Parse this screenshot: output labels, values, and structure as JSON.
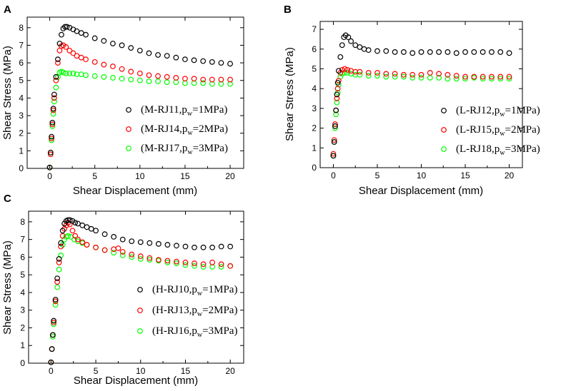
{
  "chart_data": [
    {
      "type": "scatter",
      "panel_label": "A",
      "xlabel": "Shear Displacement (mm)",
      "ylabel": "Shear Stress (MPa)",
      "xlim": [
        -2.5,
        21.5
      ],
      "ylim": [
        0,
        8.6
      ],
      "xticks": [
        0,
        5,
        10,
        15,
        20
      ],
      "yticks": [
        0,
        1,
        2,
        3,
        4,
        5,
        6,
        7,
        8
      ],
      "legend": {
        "placement": "right-middle"
      },
      "series": [
        {
          "name": "M-RJ11",
          "legend_prefix": "(M-RJ11,p",
          "legend_sub": "w",
          "legend_suffix": "=1MPa)",
          "color": "#000000",
          "x": [
            0,
            0.1,
            0.2,
            0.3,
            0.4,
            0.5,
            0.7,
            0.9,
            1.1,
            1.3,
            1.5,
            1.7,
            1.9,
            2.2,
            2.6,
            3,
            3.5,
            4,
            5,
            6,
            7,
            8,
            9,
            10,
            11,
            12,
            13,
            14,
            15,
            16,
            17,
            18,
            19,
            20
          ],
          "y": [
            0.05,
            0.9,
            1.8,
            2.6,
            3.4,
            4.2,
            5.2,
            6.2,
            7.1,
            7.6,
            7.95,
            8.05,
            8.05,
            8.0,
            7.9,
            7.8,
            7.7,
            7.6,
            7.4,
            7.25,
            7.1,
            7.0,
            6.85,
            6.7,
            6.55,
            6.45,
            6.4,
            6.3,
            6.2,
            6.15,
            6.1,
            6.05,
            6.0,
            5.95
          ]
        },
        {
          "name": "M-RJ14",
          "legend_prefix": "(M-RJ14,p",
          "legend_sub": "w",
          "legend_suffix": "=2MPa)",
          "color": "#ff0000",
          "x": [
            0,
            0.1,
            0.2,
            0.3,
            0.4,
            0.5,
            0.7,
            0.9,
            1.1,
            1.3,
            1.5,
            1.8,
            2.2,
            2.6,
            3,
            3.5,
            4,
            5,
            6,
            7,
            8,
            9,
            10,
            11,
            12,
            13,
            14,
            15,
            16,
            17,
            18,
            19,
            20
          ],
          "y": [
            0.05,
            0.8,
            1.7,
            2.5,
            3.3,
            4.0,
            5.0,
            6.0,
            6.7,
            6.95,
            7.0,
            6.9,
            6.7,
            6.55,
            6.4,
            6.3,
            6.2,
            6.05,
            5.9,
            5.8,
            5.65,
            5.5,
            5.4,
            5.3,
            5.25,
            5.2,
            5.15,
            5.1,
            5.1,
            5.05,
            5.05,
            5.05,
            5.05
          ]
        },
        {
          "name": "M-RJ17",
          "legend_prefix": "(M-RJ17,p",
          "legend_sub": "w",
          "legend_suffix": "=3MPa)",
          "color": "#00ff00",
          "x": [
            0,
            0.1,
            0.2,
            0.3,
            0.4,
            0.5,
            0.7,
            0.9,
            1.1,
            1.3,
            1.5,
            1.8,
            2.2,
            2.6,
            3,
            3.5,
            4,
            5,
            6,
            7,
            8,
            9,
            10,
            11,
            12,
            13,
            14,
            15,
            16,
            17,
            18,
            19,
            20
          ],
          "y": [
            0.05,
            0.8,
            1.6,
            2.4,
            3.1,
            3.8,
            4.6,
            5.2,
            5.45,
            5.5,
            5.45,
            5.4,
            5.4,
            5.4,
            5.35,
            5.35,
            5.3,
            5.25,
            5.2,
            5.15,
            5.1,
            5.05,
            5.0,
            4.95,
            4.95,
            4.9,
            4.9,
            4.85,
            4.85,
            4.85,
            4.8,
            4.8,
            4.8
          ]
        }
      ]
    },
    {
      "type": "scatter",
      "panel_label": "B",
      "xlabel": "Shear Displacement (mm)",
      "ylabel": "Shear Stress (MPa)",
      "xlim": [
        -1.5,
        21.5
      ],
      "ylim": [
        0,
        7.4
      ],
      "xticks": [
        0,
        5,
        10,
        15,
        20
      ],
      "yticks": [
        0,
        1,
        2,
        3,
        4,
        5,
        6,
        7
      ],
      "legend": {
        "placement": "right-middle"
      },
      "series": [
        {
          "name": "L-RJ12",
          "legend_prefix": "(L-RJ12,p",
          "legend_sub": "w",
          "legend_suffix": "=1MPa)",
          "color": "#000000",
          "x": [
            0,
            0.1,
            0.2,
            0.3,
            0.4,
            0.5,
            0.6,
            0.8,
            1.0,
            1.2,
            1.4,
            1.7,
            2,
            2.5,
            3,
            3.5,
            4,
            5,
            6,
            7,
            8,
            9,
            10,
            11,
            12,
            13,
            14,
            15,
            16,
            17,
            18,
            19,
            20
          ],
          "y": [
            0.6,
            1.3,
            2.1,
            2.9,
            3.7,
            4.3,
            4.9,
            5.6,
            6.2,
            6.6,
            6.7,
            6.6,
            6.4,
            6.2,
            6.1,
            6.0,
            5.95,
            5.9,
            5.9,
            5.85,
            5.85,
            5.8,
            5.85,
            5.85,
            5.85,
            5.85,
            5.8,
            5.85,
            5.85,
            5.85,
            5.85,
            5.85,
            5.8
          ]
        },
        {
          "name": "L-RJ15",
          "legend_prefix": "(L-RJ15,p",
          "legend_sub": "w",
          "legend_suffix": "=2MPa)",
          "color": "#ff0000",
          "x": [
            0,
            0.1,
            0.2,
            0.3,
            0.4,
            0.5,
            0.6,
            0.8,
            1.0,
            1.3,
            1.6,
            2,
            2.5,
            3,
            4,
            5,
            6,
            7,
            8,
            9,
            10,
            11,
            12,
            13,
            14,
            15,
            16,
            17,
            18,
            19,
            20
          ],
          "y": [
            0.7,
            1.4,
            2.2,
            2.9,
            3.5,
            4.0,
            4.4,
            4.8,
            4.95,
            5.0,
            4.95,
            4.9,
            4.85,
            4.85,
            4.8,
            4.8,
            4.75,
            4.75,
            4.7,
            4.7,
            4.7,
            4.8,
            4.75,
            4.7,
            4.65,
            4.6,
            4.6,
            4.6,
            4.6,
            4.6,
            4.6
          ]
        },
        {
          "name": "L-RJ18",
          "legend_prefix": "(L-RJ18,p",
          "legend_sub": "w",
          "legend_suffix": "=3MPa)",
          "color": "#00ff00",
          "x": [
            0,
            0.1,
            0.2,
            0.3,
            0.4,
            0.5,
            0.6,
            0.8,
            1.0,
            1.3,
            1.6,
            2,
            2.5,
            3,
            4,
            5,
            6,
            7,
            8,
            9,
            10,
            11,
            12,
            13,
            14,
            15,
            16,
            17,
            18,
            19,
            20
          ],
          "y": [
            0.6,
            1.3,
            2.0,
            2.7,
            3.3,
            3.8,
            4.2,
            4.6,
            4.75,
            4.8,
            4.8,
            4.75,
            4.7,
            4.7,
            4.65,
            4.65,
            4.6,
            4.6,
            4.6,
            4.55,
            4.55,
            4.55,
            4.55,
            4.5,
            4.5,
            4.5,
            4.55,
            4.5,
            4.5,
            4.5,
            4.5
          ]
        }
      ]
    },
    {
      "type": "scatter",
      "panel_label": "C",
      "xlabel": "Shear Displacement (mm)",
      "ylabel": "Shear Stress (MPa)",
      "xlim": [
        -2.5,
        21.5
      ],
      "ylim": [
        0,
        8.6
      ],
      "xticks": [
        0,
        5,
        10,
        15,
        20
      ],
      "yticks": [
        0,
        1,
        2,
        3,
        4,
        5,
        6,
        7,
        8
      ],
      "legend": {
        "placement": "right-middle"
      },
      "series": [
        {
          "name": "H-RJ10",
          "legend_prefix": "(H-RJ10,p",
          "legend_sub": "w",
          "legend_suffix": "=1MPa)",
          "color": "#000000",
          "x": [
            0,
            0.1,
            0.2,
            0.3,
            0.5,
            0.7,
            0.9,
            1.1,
            1.3,
            1.5,
            1.7,
            1.9,
            2.1,
            2.4,
            2.7,
            3,
            3.5,
            4,
            4.5,
            5,
            6,
            7,
            8,
            9,
            10,
            11,
            12,
            13,
            14,
            15,
            16,
            17,
            18,
            19,
            20
          ],
          "y": [
            0.05,
            0.8,
            1.6,
            2.4,
            3.6,
            4.8,
            5.9,
            6.8,
            7.5,
            7.9,
            8.05,
            8.1,
            8.1,
            8.05,
            7.95,
            7.9,
            7.8,
            7.7,
            7.6,
            7.5,
            7.3,
            7.15,
            7.0,
            6.9,
            6.85,
            6.8,
            6.75,
            6.7,
            6.65,
            6.6,
            6.55,
            6.55,
            6.55,
            6.6,
            6.6
          ]
        },
        {
          "name": "H-RJ13",
          "legend_prefix": "(H-RJ13,p",
          "legend_sub": "w",
          "legend_suffix": "=2MPa)",
          "color": "#ff0000",
          "x": [
            0,
            0.1,
            0.2,
            0.3,
            0.5,
            0.7,
            0.9,
            1.1,
            1.3,
            1.5,
            1.7,
            1.9,
            2.1,
            2.4,
            2.7,
            3,
            3.5,
            4,
            5,
            6,
            7,
            7.5,
            8,
            9,
            10,
            11,
            12,
            13,
            14,
            15,
            16,
            17,
            18,
            19,
            20
          ],
          "y": [
            0.05,
            0.8,
            1.6,
            2.3,
            3.5,
            4.6,
            5.7,
            6.6,
            7.2,
            7.6,
            7.8,
            7.95,
            7.85,
            7.5,
            7.2,
            7.0,
            6.85,
            6.7,
            6.55,
            6.4,
            6.45,
            6.5,
            6.3,
            6.15,
            6.05,
            5.95,
            5.85,
            5.8,
            5.75,
            5.7,
            5.65,
            5.6,
            5.7,
            5.6,
            5.5
          ]
        },
        {
          "name": "H-RJ16",
          "legend_prefix": "(H-RJ16,p",
          "legend_sub": "w",
          "legend_suffix": "=3MPa)",
          "color": "#00ff00",
          "x": [
            0,
            0.1,
            0.2,
            0.3,
            0.5,
            0.7,
            0.9,
            1.1,
            1.3,
            1.5,
            1.7,
            1.9,
            2.2,
            2.6,
            3,
            3.5,
            4,
            5,
            6,
            7,
            8,
            9,
            10,
            11,
            12,
            13,
            14,
            15,
            16,
            17,
            18,
            19,
            20
          ],
          "y": [
            0.05,
            0.8,
            1.5,
            2.2,
            3.3,
            4.3,
            5.3,
            6.1,
            6.7,
            7.0,
            7.15,
            7.2,
            7.15,
            7.0,
            6.9,
            6.8,
            6.7,
            6.55,
            6.4,
            6.25,
            6.1,
            6.0,
            5.9,
            5.85,
            5.8,
            5.7,
            5.65,
            5.55,
            5.5,
            5.45,
            5.45,
            5.45,
            5.5
          ]
        }
      ]
    }
  ]
}
